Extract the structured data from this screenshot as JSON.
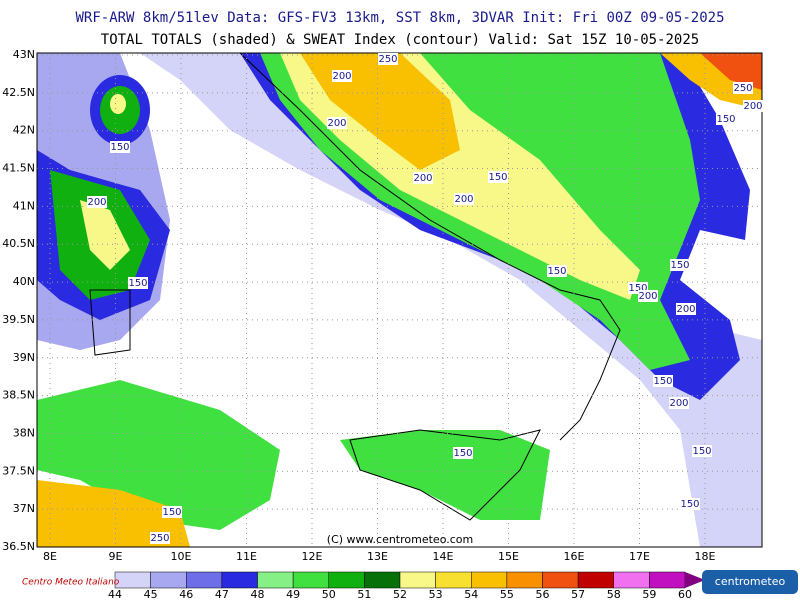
{
  "header": {
    "line1": "WRF-ARW 8km/51lev   Data: GFS-FV3 13km, SST 8km, 3DVAR   Init: Fri 00Z 09-05-2025",
    "line2": "TOTAL TOTALS (shaded) & SWEAT Index (contour)   Valid: Sat 15Z 10-05-2025"
  },
  "map": {
    "lat_labels": [
      "43N",
      "42.5N",
      "42N",
      "41.5N",
      "41N",
      "40.5N",
      "40N",
      "39.5N",
      "39N",
      "38.5N",
      "38N",
      "37.5N",
      "37N",
      "36.5N"
    ],
    "lon_labels": [
      "8E",
      "9E",
      "10E",
      "11E",
      "12E",
      "13E",
      "14E",
      "15E",
      "16E",
      "17E",
      "18E"
    ],
    "contour_labels": [
      "200",
      "250",
      "200",
      "150",
      "200",
      "150",
      "200",
      "150",
      "200",
      "150",
      "150",
      "150",
      "200",
      "200",
      "150",
      "200",
      "250",
      "150",
      "150",
      "150",
      "150",
      "150",
      "250",
      "200"
    ],
    "copyright": "(C) www.centrometeo.com"
  },
  "colorbar": {
    "labels": [
      "44",
      "45",
      "46",
      "47",
      "48",
      "49",
      "50",
      "51",
      "52",
      "53",
      "54",
      "55",
      "56",
      "57",
      "58",
      "59",
      "60"
    ],
    "colors": [
      "#d4d4f8",
      "#a8a8f0",
      "#6e6ee8",
      "#2a2ae0",
      "#86f086",
      "#40e040",
      "#10b010",
      "#087008",
      "#f8f888",
      "#f8e030",
      "#f8c000",
      "#f89000",
      "#f05010",
      "#c00000",
      "#f070f0",
      "#c010c0"
    ],
    "arrow_color": "#800080"
  },
  "logos": {
    "left": "Centro Meteo Italiano",
    "right": "centrometeo"
  }
}
